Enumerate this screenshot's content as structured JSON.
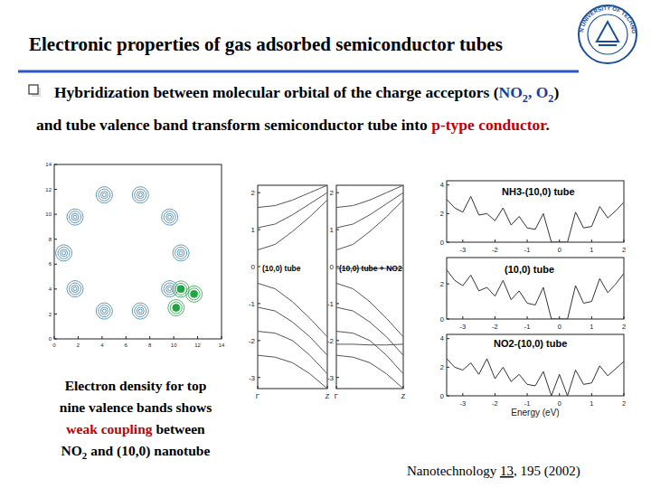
{
  "header": {
    "title": "Electronic properties of gas adsorbed semiconductor tubes",
    "logo": "DALIAN UNIVERSITY OF TECHNOLOGY"
  },
  "bullet": {
    "lines": [
      [
        {
          "text": "Hybridization between molecular orbital of the charge acceptors ("
        },
        {
          "text": "NO",
          "color": "#1f3c99"
        },
        {
          "text": "2",
          "color": "#1f3c99",
          "sub": true
        },
        {
          "text": ", O",
          "color": "#1f3c99"
        },
        {
          "text": "2",
          "color": "#1f3c99",
          "sub": true
        },
        {
          "text": ")"
        }
      ],
      [
        {
          "text": "and tube valence band transform semiconductor tube into "
        },
        {
          "text": "p-type conductor",
          "color": "#c00000"
        },
        {
          "text": "."
        }
      ]
    ]
  },
  "caption": {
    "lines": [
      [
        {
          "text": "Electron density for top"
        }
      ],
      [
        {
          "text": "nine valence bands shows"
        }
      ],
      [
        {
          "text": "weak coupling",
          "color": "#c00000"
        },
        {
          "text": " between"
        }
      ],
      [
        {
          "text": "NO"
        },
        {
          "text": "2",
          "sub": true
        },
        {
          "text": " and (10,0) nanotube"
        }
      ]
    ]
  },
  "citation": {
    "parts": [
      {
        "text": "Nanotechnology "
      },
      {
        "text": "13",
        "underline": true
      },
      {
        "text": ", 195 (2002)"
      }
    ]
  },
  "chart_data": [
    {
      "type": "scatter",
      "marker": "contour",
      "xlim": [
        0,
        14
      ],
      "ylim": [
        0,
        14
      ],
      "xticks": [
        0,
        2,
        4,
        6,
        8,
        10,
        12,
        14
      ],
      "yticks": [
        0,
        2,
        4,
        6,
        8,
        10,
        12,
        14
      ],
      "series": [
        {
          "color": "#3d7fa8",
          "x": [
            10.6,
            9.66,
            7.21,
            4.19,
            1.74,
            0.8,
            1.74,
            4.19,
            7.21,
            9.66
          ],
          "values": [
            6.9,
            9.78,
            11.56,
            11.56,
            9.78,
            6.9,
            4.02,
            2.24,
            2.24,
            4.02
          ]
        },
        {
          "color": "#22a444",
          "x": [
            10.6,
            11.7,
            10.2
          ],
          "values": [
            4.0,
            3.6,
            2.5
          ]
        }
      ]
    },
    {
      "type": "line",
      "title": "(10,0) tube",
      "color": "#555555",
      "x": [
        0,
        0.25,
        0.5,
        0.75,
        1
      ],
      "xlim": [
        0,
        1
      ],
      "ylim": [
        -3.3,
        2.2
      ],
      "xticks": [
        {
          "value": 0,
          "label": "Γ"
        },
        {
          "value": 1,
          "label": "Z"
        }
      ],
      "yticks": [
        -3,
        -2,
        -1,
        0,
        1,
        2
      ],
      "series": [
        {
          "values": [
            0.45,
            0.6,
            0.95,
            1.35,
            1.8
          ]
        },
        {
          "values": [
            1.05,
            1.15,
            1.4,
            1.7,
            2.0
          ]
        },
        {
          "values": [
            1.6,
            1.65,
            1.8,
            2.0,
            2.2
          ]
        },
        {
          "values": [
            -0.45,
            -0.6,
            -0.95,
            -1.4,
            -1.9
          ]
        },
        {
          "values": [
            -1.1,
            -1.2,
            -1.5,
            -1.9,
            -2.4
          ]
        },
        {
          "values": [
            -1.75,
            -1.8,
            -2.0,
            -2.4,
            -2.9
          ]
        },
        {
          "values": [
            -2.4,
            -2.45,
            -2.6,
            -2.9,
            -3.3
          ]
        }
      ]
    },
    {
      "type": "line",
      "title": "(10,0) tube + NO2",
      "color": "#555555",
      "x": [
        0,
        0.25,
        0.5,
        0.75,
        1
      ],
      "xlim": [
        0,
        1
      ],
      "ylim": [
        -3.3,
        2.2
      ],
      "xticks": [
        {
          "value": 0,
          "label": "Γ"
        },
        {
          "value": 1,
          "label": "Z"
        }
      ],
      "yticks": [
        -3,
        -2,
        -1,
        0,
        1,
        2
      ],
      "series": [
        {
          "values": [
            0.45,
            0.6,
            0.95,
            1.35,
            1.8
          ]
        },
        {
          "values": [
            1.05,
            1.15,
            1.4,
            1.7,
            2.0
          ]
        },
        {
          "values": [
            1.6,
            1.65,
            1.8,
            2.0,
            2.2
          ]
        },
        {
          "values": [
            -0.05,
            -0.05,
            -0.05,
            -0.05,
            -0.05
          ]
        },
        {
          "values": [
            -0.45,
            -0.6,
            -0.95,
            -1.4,
            -1.9
          ]
        },
        {
          "values": [
            -1.1,
            -1.2,
            -1.5,
            -1.9,
            -2.4
          ]
        },
        {
          "values": [
            -1.75,
            -1.8,
            -2.0,
            -2.4,
            -2.9
          ]
        },
        {
          "values": [
            -2.1,
            -2.1,
            -2.12,
            -2.12,
            -2.1
          ]
        },
        {
          "values": [
            -2.4,
            -2.45,
            -2.6,
            -2.9,
            -3.3
          ]
        }
      ]
    },
    {
      "type": "line",
      "title": "NH3-(10,0) tube",
      "color": "#333333",
      "xlim": [
        -3.5,
        2
      ],
      "ylim": [
        0,
        4.3
      ],
      "xticks": [
        -3,
        -2,
        -1,
        0,
        1,
        2
      ],
      "yticks": [
        0,
        2,
        4
      ],
      "x": [
        -3.5,
        -3.25,
        -3,
        -2.75,
        -2.5,
        -2.25,
        -2,
        -1.75,
        -1.5,
        -1.25,
        -1,
        -0.75,
        -0.5,
        -0.25,
        0,
        0.25,
        0.5,
        0.75,
        1,
        1.25,
        1.5,
        1.75,
        2
      ],
      "series": [
        {
          "values": [
            3.0,
            2.4,
            2.1,
            3.2,
            1.9,
            2.0,
            1.5,
            2.4,
            1.2,
            1.8,
            1.0,
            0.9,
            2.0,
            0,
            0,
            0,
            2.1,
            1.0,
            1.1,
            2.5,
            1.7,
            2.2,
            2.8
          ]
        }
      ]
    },
    {
      "type": "line",
      "title": "(10,0) tube",
      "color": "#333333",
      "xlim": [
        -3.5,
        2
      ],
      "ylim": [
        0,
        3.5
      ],
      "xticks": [
        -3,
        -2,
        -1,
        0,
        1,
        2
      ],
      "yticks": [
        0,
        2
      ],
      "x": [
        -3.5,
        -3.25,
        -3,
        -2.75,
        -2.5,
        -2.25,
        -2,
        -1.75,
        -1.5,
        -1.25,
        -1,
        -0.75,
        -0.5,
        -0.25,
        0,
        0.25,
        0.5,
        0.75,
        1,
        1.25,
        1.5,
        1.75,
        2
      ],
      "series": [
        {
          "values": [
            2.8,
            2.2,
            1.9,
            2.5,
            1.6,
            1.8,
            1.3,
            2.2,
            1.1,
            1.6,
            0.9,
            0.8,
            1.8,
            0,
            0,
            0,
            1.9,
            0.9,
            1.0,
            2.3,
            1.5,
            2.0,
            2.6
          ]
        }
      ]
    },
    {
      "type": "line",
      "title": "NO2-(10,0) tube",
      "xlabel": "Energy (eV)",
      "color": "#333333",
      "xlim": [
        -3.5,
        2
      ],
      "ylim": [
        0,
        4.3
      ],
      "xticks": [
        -3,
        -2,
        -1,
        0,
        1,
        2
      ],
      "yticks": [
        0,
        2,
        4
      ],
      "x": [
        -3.5,
        -3.25,
        -3,
        -2.75,
        -2.5,
        -2.25,
        -2,
        -1.75,
        -1.5,
        -1.25,
        -1,
        -0.75,
        -0.5,
        -0.25,
        0,
        0.25,
        0.5,
        0.75,
        1,
        1.25,
        1.5,
        1.75,
        2
      ],
      "series": [
        {
          "values": [
            2.6,
            2.0,
            1.8,
            2.3,
            1.5,
            2.6,
            1.2,
            2.0,
            1.0,
            1.5,
            0.8,
            0.7,
            1.7,
            0,
            1.5,
            0,
            1.8,
            0.8,
            0.9,
            2.1,
            1.4,
            1.9,
            2.4
          ]
        }
      ]
    }
  ]
}
